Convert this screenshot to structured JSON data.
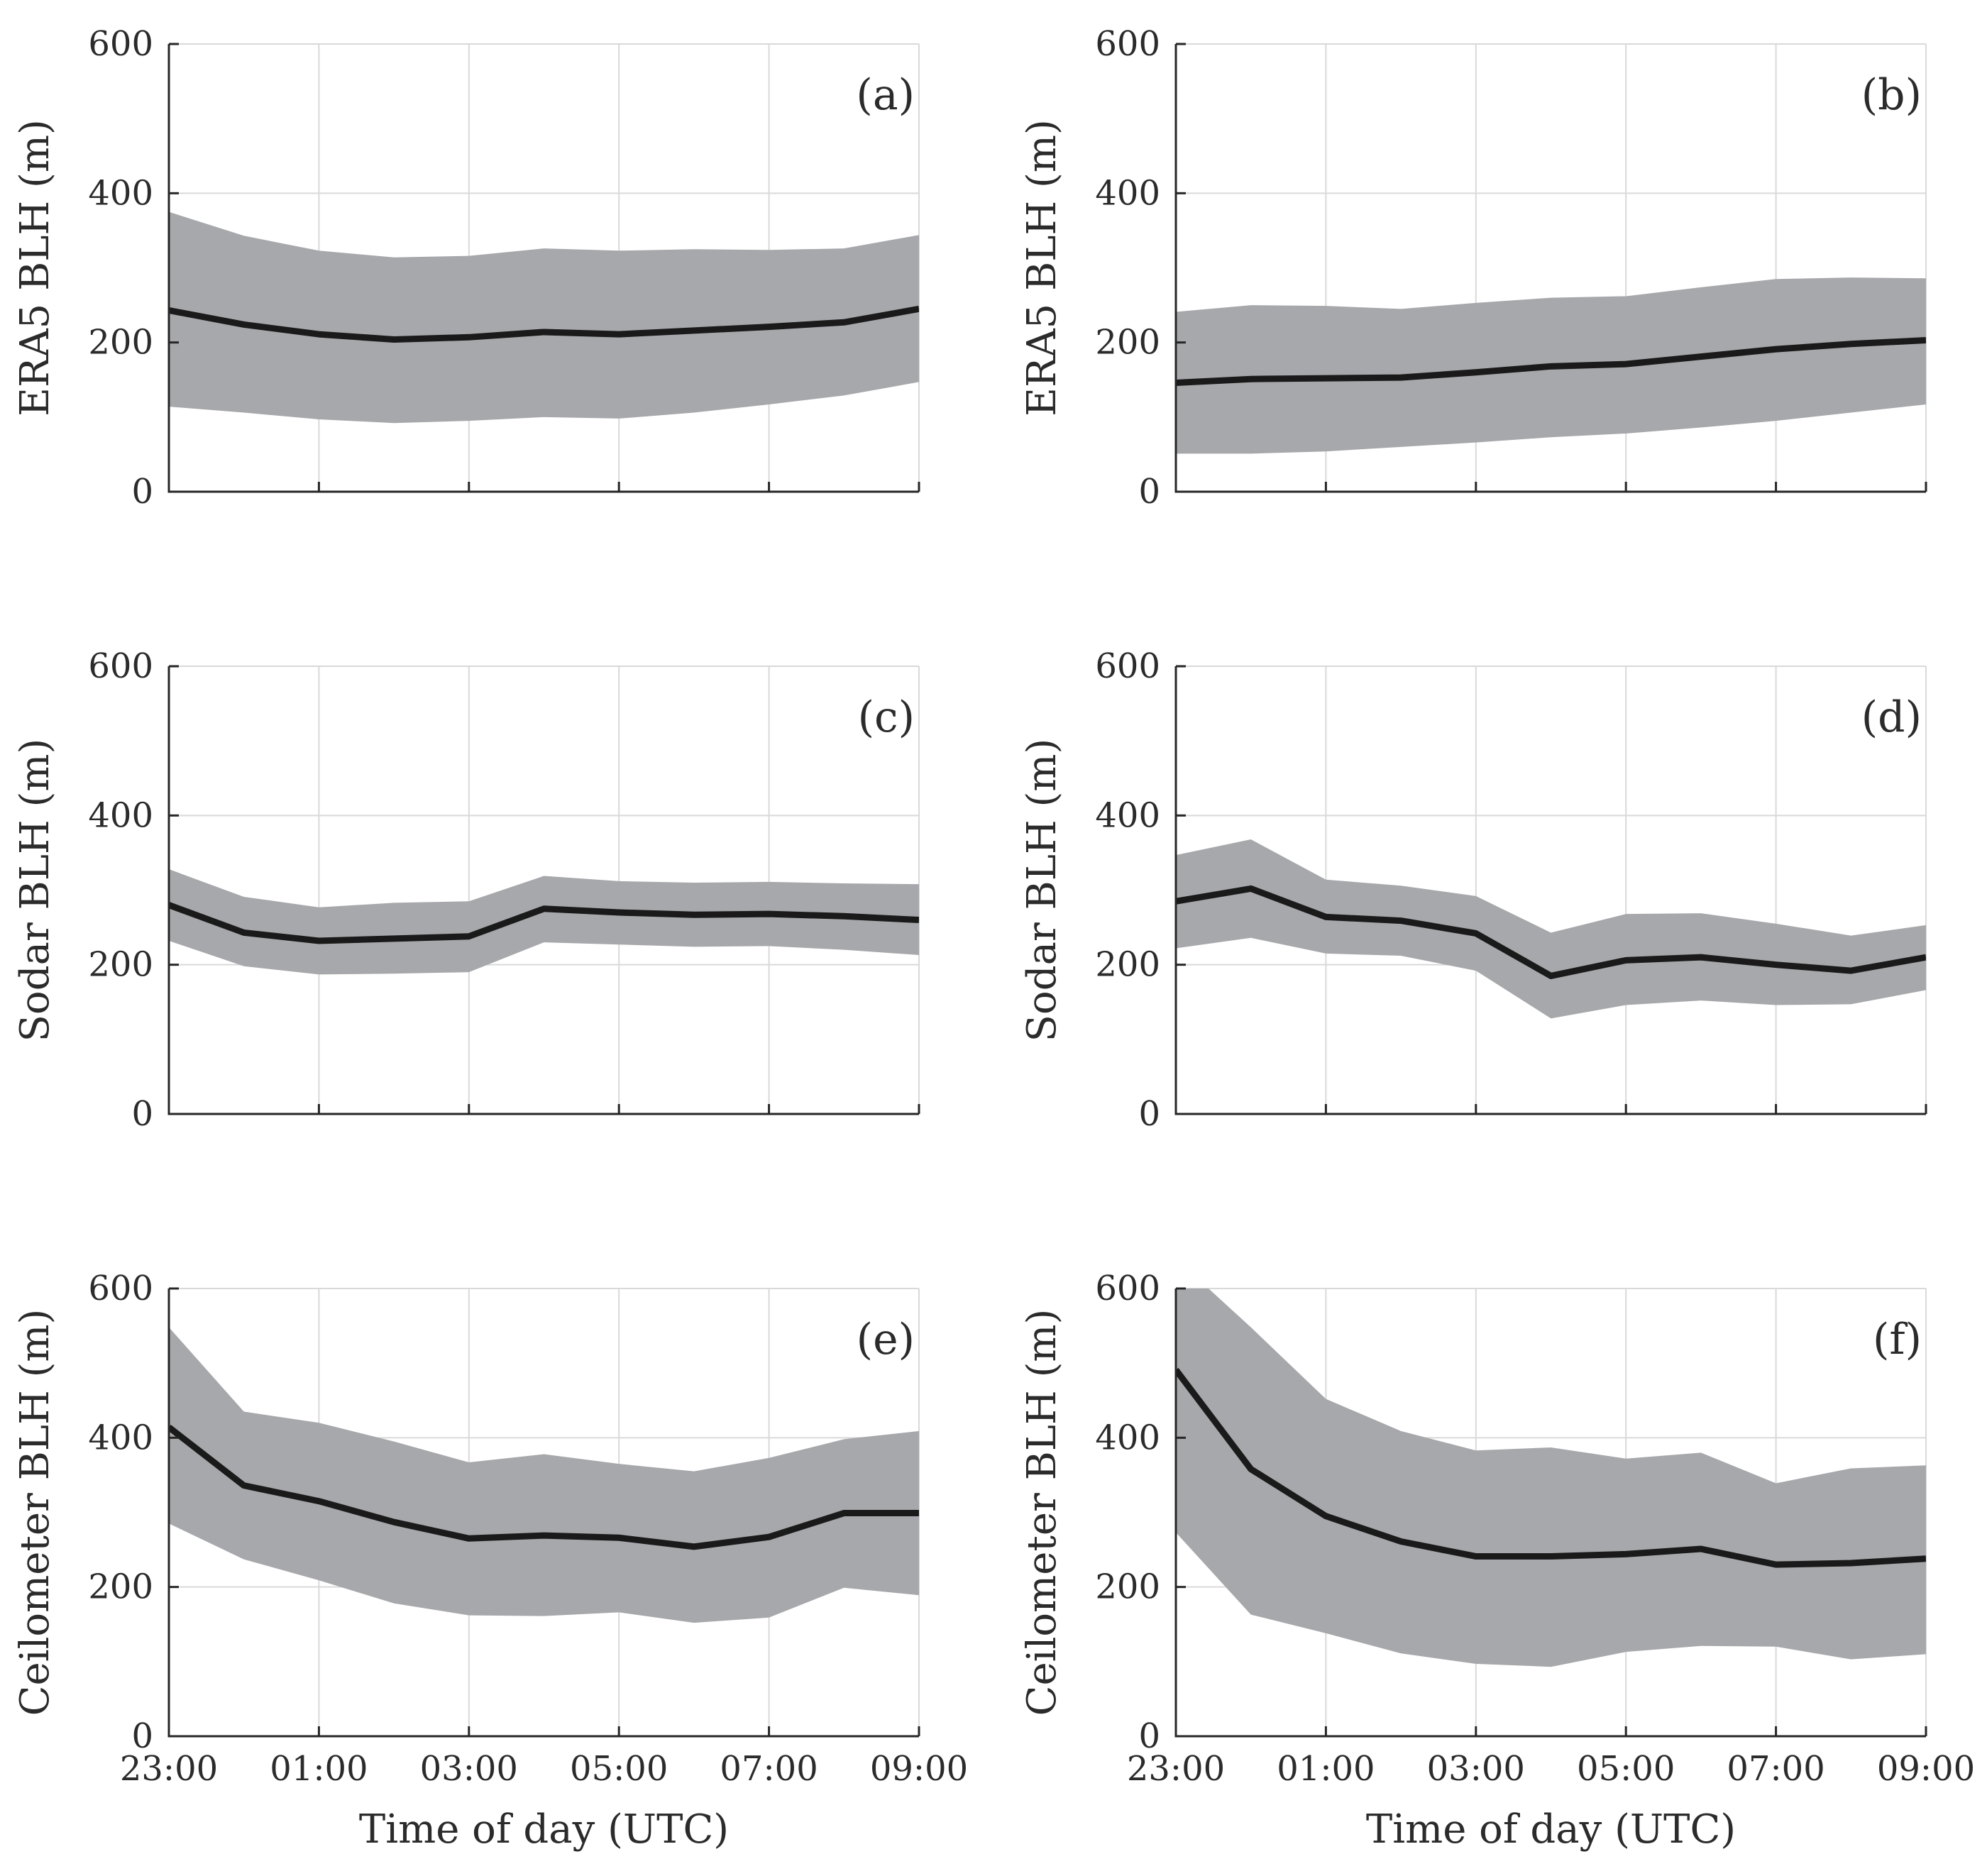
{
  "figure": {
    "band_color": "#a7a8ab",
    "line_color": "#1a1a1a"
  },
  "chart_data": [
    {
      "type": "line",
      "panel_label": "(a)",
      "ylabel": "ERA5 BLH (m)",
      "xlabel": "",
      "ylim": [
        0,
        600
      ],
      "yticks": [
        0,
        200,
        400,
        600
      ],
      "x": [
        "23:00",
        "00:00",
        "01:00",
        "02:00",
        "03:00",
        "04:00",
        "05:00",
        "06:00",
        "07:00",
        "08:00",
        "09:00"
      ],
      "xticks": [
        "23:00",
        "01:00",
        "03:00",
        "05:00",
        "07:00",
        "09:00"
      ],
      "show_xtick_labels": false,
      "grid": true,
      "mean": [
        243,
        224,
        211,
        204,
        207,
        214,
        211,
        216,
        221,
        227,
        245
      ],
      "upper": [
        375,
        343,
        323,
        314,
        316,
        326,
        323,
        325,
        324,
        326,
        344
      ],
      "lower": [
        114,
        106,
        97,
        92,
        95,
        100,
        98,
        106,
        117,
        129,
        147
      ]
    },
    {
      "type": "line",
      "panel_label": "(b)",
      "ylabel": "ERA5 BLH (m)",
      "xlabel": "",
      "ylim": [
        0,
        600
      ],
      "yticks": [
        0,
        200,
        400,
        600
      ],
      "x": [
        "23:00",
        "00:00",
        "01:00",
        "02:00",
        "03:00",
        "04:00",
        "05:00",
        "06:00",
        "07:00",
        "08:00",
        "09:00"
      ],
      "xticks": [
        "23:00",
        "01:00",
        "03:00",
        "05:00",
        "07:00",
        "09:00"
      ],
      "show_xtick_labels": false,
      "grid": true,
      "mean": [
        146,
        151,
        152,
        153,
        160,
        168,
        171,
        181,
        191,
        198,
        203
      ],
      "upper": [
        241,
        250,
        249,
        245,
        253,
        260,
        262,
        274,
        285,
        287,
        286
      ],
      "lower": [
        51,
        51,
        54,
        60,
        66,
        73,
        78,
        86,
        95,
        106,
        117
      ]
    },
    {
      "type": "line",
      "panel_label": "(c)",
      "ylabel": "Sodar BLH (m)",
      "xlabel": "",
      "ylim": [
        0,
        600
      ],
      "yticks": [
        0,
        200,
        400,
        600
      ],
      "x": [
        "23:00",
        "00:00",
        "01:00",
        "02:00",
        "03:00",
        "04:00",
        "05:00",
        "06:00",
        "07:00",
        "08:00",
        "09:00"
      ],
      "xticks": [
        "23:00",
        "01:00",
        "03:00",
        "05:00",
        "07:00",
        "09:00"
      ],
      "show_xtick_labels": false,
      "grid": true,
      "mean": [
        280,
        243,
        232,
        235,
        238,
        275,
        270,
        267,
        268,
        265,
        260
      ],
      "upper": [
        328,
        291,
        277,
        283,
        285,
        319,
        312,
        310,
        311,
        309,
        308
      ],
      "lower": [
        232,
        198,
        187,
        188,
        190,
        230,
        227,
        224,
        225,
        220,
        213
      ]
    },
    {
      "type": "line",
      "panel_label": "(d)",
      "ylabel": "Sodar BLH (m)",
      "xlabel": "",
      "ylim": [
        0,
        600
      ],
      "yticks": [
        0,
        200,
        400,
        600
      ],
      "x": [
        "23:00",
        "00:00",
        "01:00",
        "02:00",
        "03:00",
        "04:00",
        "05:00",
        "06:00",
        "07:00",
        "08:00",
        "09:00"
      ],
      "xticks": [
        "23:00",
        "01:00",
        "03:00",
        "05:00",
        "07:00",
        "09:00"
      ],
      "show_xtick_labels": false,
      "grid": true,
      "mean": [
        285,
        302,
        264,
        259,
        242,
        185,
        206,
        210,
        200,
        192,
        210
      ],
      "upper": [
        347,
        368,
        314,
        306,
        292,
        243,
        268,
        269,
        255,
        239,
        253
      ],
      "lower": [
        222,
        236,
        215,
        212,
        192,
        128,
        146,
        152,
        146,
        147,
        166
      ]
    },
    {
      "type": "line",
      "panel_label": "(e)",
      "ylabel": "Ceilometer BLH (m)",
      "xlabel": "Time of day (UTC)",
      "ylim": [
        0,
        600
      ],
      "yticks": [
        0,
        200,
        400,
        600
      ],
      "x": [
        "23:00",
        "00:00",
        "01:00",
        "02:00",
        "03:00",
        "04:00",
        "05:00",
        "06:00",
        "07:00",
        "08:00",
        "09:00"
      ],
      "xticks": [
        "23:00",
        "01:00",
        "03:00",
        "05:00",
        "07:00",
        "09:00"
      ],
      "show_xtick_labels": true,
      "grid": true,
      "mean": [
        414,
        336,
        315,
        287,
        265,
        269,
        266,
        254,
        267,
        299,
        299
      ],
      "upper": [
        548,
        435,
        420,
        395,
        367,
        378,
        365,
        355,
        373,
        398,
        409
      ],
      "lower": [
        285,
        237,
        209,
        178,
        162,
        161,
        166,
        152,
        159,
        199,
        189
      ]
    },
    {
      "type": "line",
      "panel_label": "(f)",
      "ylabel": "Ceilometer BLH (m)",
      "xlabel": "Time of day (UTC)",
      "ylim": [
        0,
        600
      ],
      "yticks": [
        0,
        200,
        400,
        600
      ],
      "x": [
        "23:00",
        "00:00",
        "01:00",
        "02:00",
        "03:00",
        "04:00",
        "05:00",
        "06:00",
        "07:00",
        "08:00",
        "09:00"
      ],
      "xticks": [
        "23:00",
        "01:00",
        "03:00",
        "05:00",
        "07:00",
        "09:00"
      ],
      "show_xtick_labels": true,
      "grid": true,
      "mean": [
        491,
        358,
        295,
        261,
        241,
        241,
        244,
        251,
        230,
        232,
        238
      ],
      "upper": [
        640,
        548,
        452,
        409,
        383,
        387,
        372,
        380,
        339,
        359,
        363
      ],
      "lower": [
        273,
        163,
        138,
        111,
        97,
        93,
        113,
        121,
        120,
        103,
        110
      ]
    }
  ]
}
